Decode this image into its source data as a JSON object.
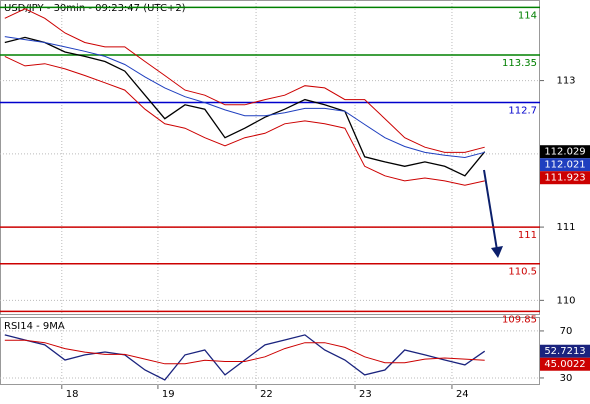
{
  "chart_data": [
    {
      "type": "line",
      "title": "USD/JPY - 30min - 09:23:47 (UTC+2)",
      "x": [
        1.2,
        6.2,
        11.1,
        16.1,
        21.0,
        26.0,
        30.9,
        35.9,
        40.8,
        45.8,
        50.7,
        55.7,
        60.6,
        65.6,
        70.5,
        75.5,
        80.4,
        85.4,
        90.3,
        95.3,
        100.2,
        105.2,
        110.1,
        115.1,
        120.0
      ],
      "xlim": [
        0,
        133.7
      ],
      "ylim": [
        109.8,
        114.1
      ],
      "yticks": [
        110,
        111,
        112,
        113
      ],
      "series": [
        {
          "color": "#000000",
          "values": [
            113.52,
            113.59,
            113.52,
            113.39,
            113.33,
            113.26,
            113.13,
            112.8,
            112.48,
            112.67,
            112.61,
            112.22,
            112.35,
            112.5,
            112.61,
            112.74,
            112.67,
            112.58,
            111.96,
            111.89,
            111.83,
            111.89,
            111.83,
            111.7,
            112.029
          ]
        },
        {
          "color": "#1f3fbf",
          "values": [
            113.6,
            113.56,
            113.52,
            113.46,
            113.4,
            113.33,
            113.22,
            113.05,
            112.9,
            112.78,
            112.7,
            112.6,
            112.52,
            112.52,
            112.56,
            112.62,
            112.62,
            112.58,
            112.4,
            112.22,
            112.1,
            112.02,
            111.98,
            111.95,
            112.021
          ]
        },
        {
          "color": "#cc0000",
          "values": [
            113.85,
            113.98,
            113.85,
            113.65,
            113.52,
            113.46,
            113.46,
            113.26,
            113.07,
            112.87,
            112.8,
            112.67,
            112.67,
            112.74,
            112.8,
            112.93,
            112.9,
            112.74,
            112.74,
            112.48,
            112.22,
            112.09,
            112.02,
            112.02,
            112.09
          ]
        },
        {
          "color": "#cc0000",
          "values": [
            113.33,
            113.2,
            113.23,
            113.16,
            113.07,
            112.97,
            112.87,
            112.61,
            112.41,
            112.35,
            112.22,
            112.11,
            112.22,
            112.28,
            112.41,
            112.45,
            112.41,
            112.35,
            111.83,
            111.7,
            111.63,
            111.67,
            111.63,
            111.57,
            111.63
          ]
        }
      ],
      "levels": [
        {
          "value": 114,
          "color": "#008000"
        },
        {
          "value": 113.35,
          "color": "#008000"
        },
        {
          "value": 112.7,
          "color": "#0000cc"
        },
        {
          "value": 111,
          "color": "#cc0000"
        },
        {
          "value": 110.5,
          "color": "#cc0000"
        },
        {
          "value": 109.85,
          "color": "#cc0000"
        }
      ],
      "price_tags": [
        {
          "value": 111.923,
          "color": "#cc0000"
        }
      ]
    },
    {
      "type": "line",
      "title": "RSI14 - 9MA",
      "x": [
        1.2,
        6.2,
        11.1,
        16.1,
        21.0,
        26.0,
        30.9,
        35.9,
        40.8,
        45.8,
        50.7,
        55.7,
        60.6,
        65.6,
        70.5,
        75.5,
        80.4,
        85.4,
        90.3,
        95.3,
        100.2,
        105.2,
        110.1,
        115.1,
        120.0
      ],
      "xlim": [
        0,
        133.7
      ],
      "xticks": [
        {
          "value": 15.3,
          "label": "18"
        },
        {
          "value": 39.1,
          "label": "19"
        },
        {
          "value": 63.4,
          "label": "22"
        },
        {
          "value": 87.9,
          "label": "23"
        },
        {
          "value": 111.9,
          "label": "24"
        }
      ],
      "ylim": [
        24,
        81
      ],
      "yticks": [
        30,
        70
      ],
      "series": [
        {
          "color": "#1a237e",
          "values": [
            66.6,
            62.3,
            58.1,
            45.3,
            49.6,
            52.1,
            49.6,
            36.8,
            28.3,
            49.6,
            53.8,
            32.6,
            45.3,
            58.1,
            62.3,
            66.6,
            53.8,
            45.3,
            32.6,
            36.8,
            53.8,
            49.6,
            45.3,
            41.1,
            52.7213
          ]
        },
        {
          "color": "#cc0000",
          "values": [
            62,
            62,
            60,
            55,
            52,
            50,
            50,
            46,
            42,
            42,
            45,
            44,
            44,
            48,
            55,
            60,
            60,
            56,
            48,
            43,
            43,
            46,
            47,
            46,
            45.0022
          ]
        }
      ]
    }
  ]
}
